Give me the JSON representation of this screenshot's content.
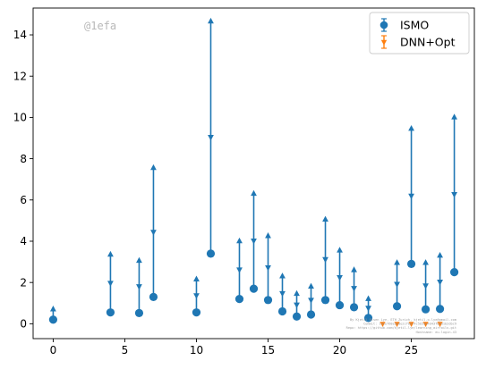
{
  "watermark": "@1efa",
  "credit_lines": [
    "By Kjetil Olsen Lye, ETH Zurich, kjetil.o.lye@gmail.com",
    "Commit: 1a1ef68e3e0e2cf0b74c5b53a4d43fbbd1b2dbc9",
    "Repo: https://github.com/kjetil-lye/learning_airfoils.git",
    "Hostname: eu-login-43"
  ],
  "chart_data": {
    "type": "scatter",
    "title": "",
    "xlabel": "",
    "ylabel": "",
    "xlim": [
      -1.4,
      29.4
    ],
    "ylim": [
      -0.72,
      15.3
    ],
    "xticks": [
      0,
      5,
      10,
      15,
      20,
      25
    ],
    "yticks": [
      0,
      2,
      4,
      6,
      8,
      10,
      12,
      14
    ],
    "grid": false,
    "legend_position": "top-right",
    "series": [
      {
        "name": "ISMO",
        "color": "#1f77b4",
        "marker": "circle",
        "points": [
          {
            "x": 0,
            "y": 0.2,
            "upper": 0.75
          },
          {
            "x": 4,
            "y": 0.55,
            "upper": 3.4
          },
          {
            "x": 6,
            "y": 0.52,
            "upper": 3.1
          },
          {
            "x": 7,
            "y": 1.3,
            "upper": 7.6
          },
          {
            "x": 10,
            "y": 0.55,
            "upper": 2.2
          },
          {
            "x": 11,
            "y": 3.4,
            "upper": 14.7
          },
          {
            "x": 13,
            "y": 1.2,
            "upper": 4.05
          },
          {
            "x": 14,
            "y": 1.7,
            "upper": 6.35
          },
          {
            "x": 15,
            "y": 1.15,
            "upper": 4.3
          },
          {
            "x": 16,
            "y": 0.6,
            "upper": 2.35
          },
          {
            "x": 17,
            "y": 0.35,
            "upper": 1.5
          },
          {
            "x": 18,
            "y": 0.45,
            "upper": 1.85
          },
          {
            "x": 19,
            "y": 1.15,
            "upper": 5.1
          },
          {
            "x": 20,
            "y": 0.9,
            "upper": 3.6
          },
          {
            "x": 21,
            "y": 0.8,
            "upper": 2.65
          },
          {
            "x": 22,
            "y": 0.28,
            "upper": 1.25
          },
          {
            "x": 24,
            "y": 0.85,
            "upper": 3.0
          },
          {
            "x": 25,
            "y": 2.9,
            "upper": 9.5
          },
          {
            "x": 26,
            "y": 0.7,
            "upper": 3.0
          },
          {
            "x": 27,
            "y": 0.72,
            "upper": 3.35
          },
          {
            "x": 28,
            "y": 2.5,
            "upper": 10.05
          }
        ]
      },
      {
        "name": "DNN+Opt",
        "color": "#ff7f0e",
        "marker": "triangle",
        "points": [
          {
            "x": 23,
            "y": 0.0,
            "upper": 0.05
          },
          {
            "x": 24,
            "y": 0.0,
            "upper": 0.05
          },
          {
            "x": 25,
            "y": 0.0,
            "upper": 0.05
          },
          {
            "x": 26,
            "y": 0.0,
            "upper": 0.05
          },
          {
            "x": 27,
            "y": 0.0,
            "upper": 0.05
          }
        ]
      }
    ]
  }
}
